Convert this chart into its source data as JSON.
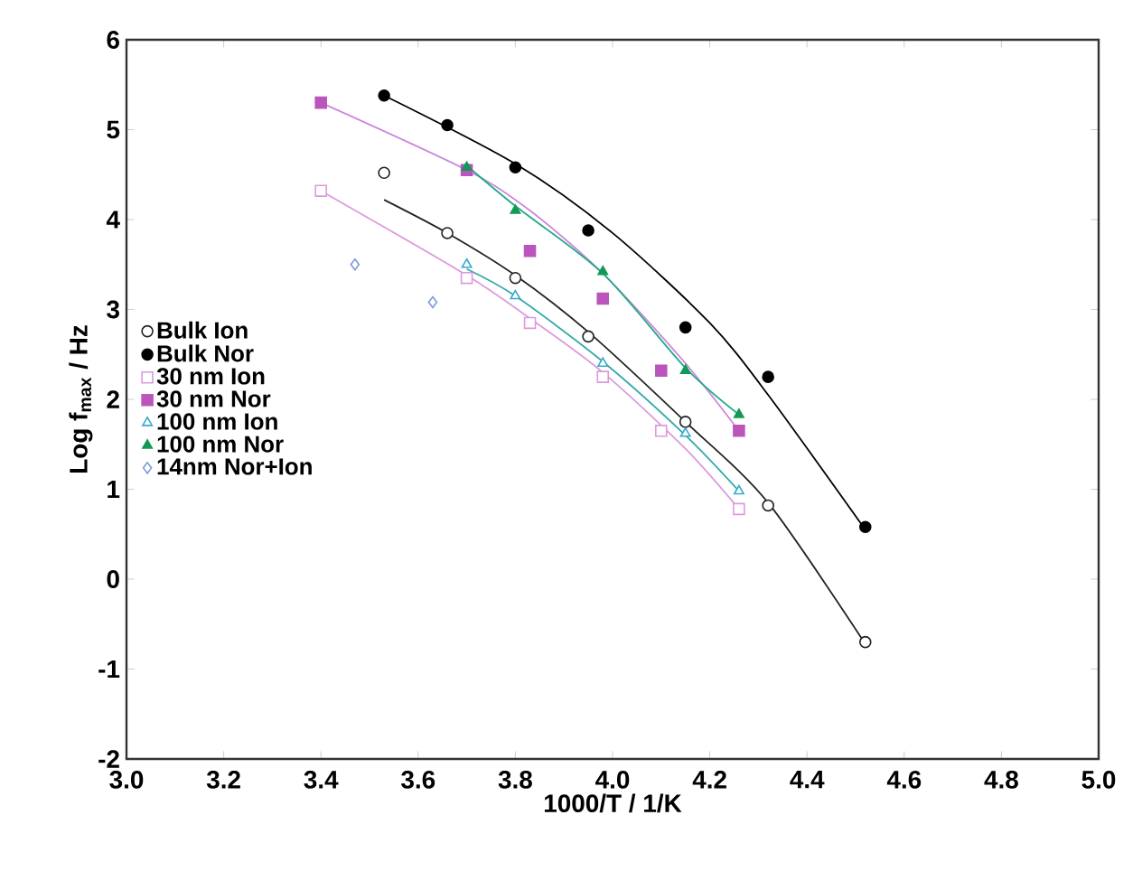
{
  "chart_data": {
    "type": "scatter",
    "xlabel": "1000/T  /  1/K",
    "ylabel": "Log f$_{max}$ / Hz",
    "xlim": [
      3.0,
      5.0
    ],
    "xticks": [
      {
        "value": 3.0,
        "label": "3.0"
      },
      3.2,
      3.4,
      3.6,
      3.8,
      {
        "value": 4.0,
        "label": "4.0"
      },
      4.2,
      4.4,
      4.6,
      4.8,
      {
        "value": 5.0,
        "label": "5.0"
      }
    ],
    "ylim": [
      -2,
      6
    ],
    "yticks": [
      -2,
      -1,
      0,
      1,
      2,
      3,
      4,
      5,
      6
    ],
    "grid": false,
    "legend": "left",
    "series": [
      {
        "name": "Bulk Ion",
        "color": "#222222",
        "marker": "circle",
        "x": [
          3.53,
          3.66,
          3.8,
          3.95,
          4.15,
          4.32,
          4.52
        ],
        "values": [
          4.52,
          3.85,
          3.35,
          2.7,
          1.75,
          0.82,
          -0.7
        ]
      },
      {
        "name": "Bulk Nor",
        "color": "#000000",
        "marker": "circle",
        "x": [
          3.53,
          3.66,
          3.8,
          3.95,
          4.15,
          4.32,
          4.52
        ],
        "values": [
          5.38,
          5.05,
          4.58,
          3.88,
          2.8,
          2.25,
          0.58
        ]
      },
      {
        "name": "30 nm  Ion",
        "color": "#dd99dd",
        "marker": "square",
        "x": [
          3.4,
          3.7,
          3.83,
          3.98,
          4.1,
          4.26
        ],
        "values": [
          4.32,
          3.35,
          2.85,
          2.25,
          1.65,
          0.78
        ]
      },
      {
        "name": "30 nm  Nor",
        "color": "#bb55bb",
        "marker": "square",
        "x": [
          3.4,
          3.7,
          3.83,
          3.98,
          4.1,
          4.26
        ],
        "values": [
          5.3,
          4.55,
          3.65,
          3.12,
          2.32,
          1.65
        ]
      },
      {
        "name": "100 nm  Ion",
        "color": "#33aacc",
        "marker": "triangle",
        "x": [
          3.7,
          3.8,
          3.98,
          4.15,
          4.26
        ],
        "values": [
          3.5,
          3.15,
          2.4,
          1.62,
          0.98
        ]
      },
      {
        "name": "100 nm  Nor",
        "color": "#119955",
        "marker": "triangle",
        "x": [
          3.7,
          3.8,
          3.98,
          4.15,
          4.26
        ],
        "values": [
          4.58,
          4.1,
          3.42,
          2.32,
          1.83
        ]
      },
      {
        "name": "14nm Nor+Ion",
        "color": "#7799dd",
        "marker": "diamond",
        "x": [
          3.47,
          3.63
        ],
        "values": [
          3.5,
          3.08
        ]
      },
      {
        "type": "line",
        "color": "#222222",
        "marker": "none",
        "line_style": "solid",
        "x": [
          3.53,
          3.66,
          3.8,
          3.95,
          4.15,
          4.32,
          4.52
        ],
        "values": [
          4.22,
          3.85,
          3.38,
          2.75,
          1.75,
          0.85,
          -0.72
        ]
      },
      {
        "type": "line",
        "color": "#000000",
        "marker": "none",
        "line_style": "solid",
        "x": [
          3.53,
          3.8,
          4.0,
          4.2,
          4.32,
          4.52
        ],
        "values": [
          5.38,
          4.62,
          3.85,
          2.85,
          2.05,
          0.55
        ]
      },
      {
        "type": "line",
        "color": "#dd99dd",
        "marker": "none",
        "line_style": "solid",
        "x": [
          3.4,
          3.7,
          3.83,
          3.98,
          4.15,
          4.26
        ],
        "values": [
          4.32,
          3.38,
          2.9,
          2.3,
          1.45,
          0.78
        ]
      },
      {
        "type": "line",
        "color": "#cc88dd",
        "marker": "none",
        "line_style": "solid",
        "x": [
          3.4,
          3.7,
          3.83,
          3.98,
          4.15,
          4.26
        ],
        "values": [
          5.3,
          4.55,
          4.1,
          3.4,
          2.4,
          1.65
        ]
      },
      {
        "type": "line",
        "color": "#33aaaa",
        "marker": "none",
        "line_style": "solid",
        "x": [
          3.7,
          3.8,
          3.98,
          4.15,
          4.26
        ],
        "values": [
          3.45,
          3.15,
          2.42,
          1.6,
          0.98
        ]
      },
      {
        "type": "line",
        "color": "#22aa88",
        "marker": "none",
        "line_style": "solid",
        "x": [
          3.7,
          3.8,
          3.98,
          4.15,
          4.26
        ],
        "values": [
          4.6,
          4.15,
          3.4,
          2.35,
          1.83
        ]
      }
    ]
  }
}
